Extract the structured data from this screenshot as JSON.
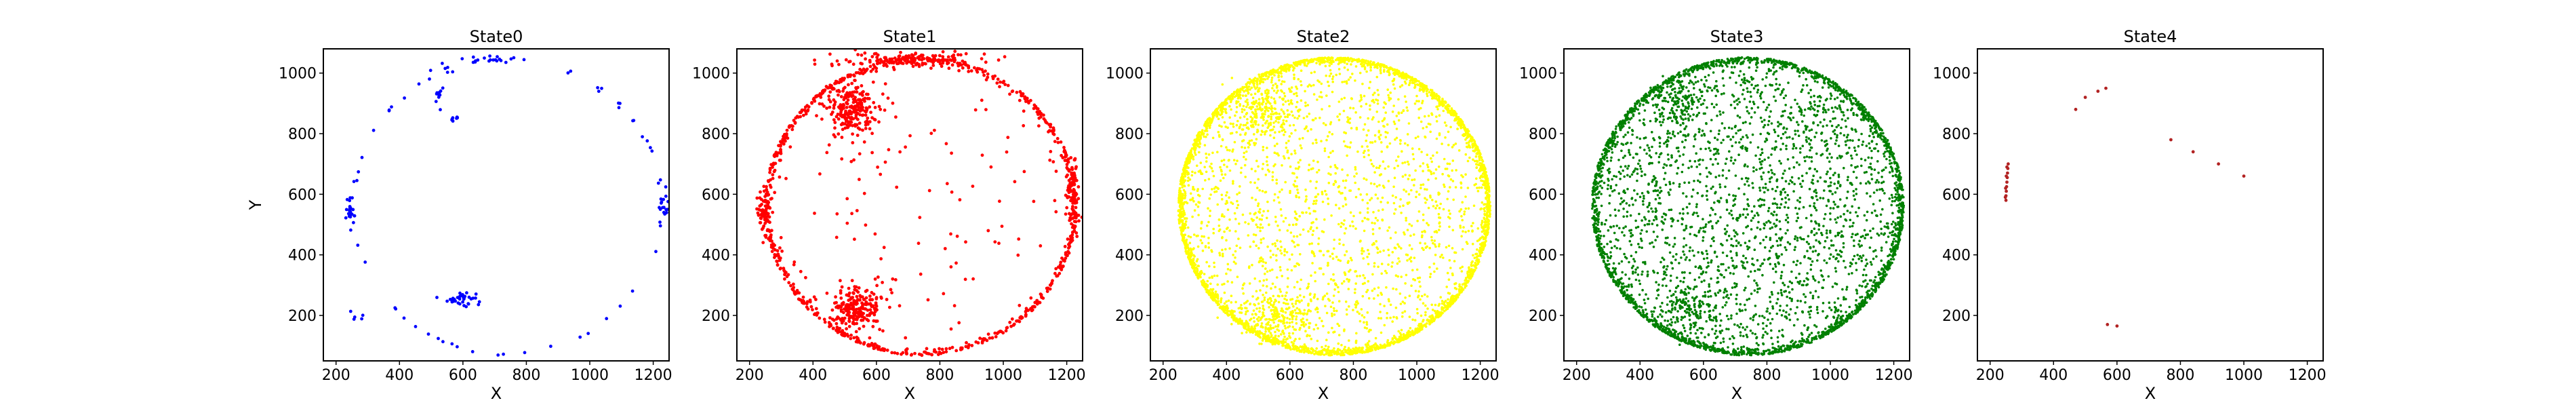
{
  "chart_data": [
    {
      "type": "scatter",
      "title": "State0",
      "xlabel": "X",
      "ylabel": "Y",
      "xlim": [
        160,
        1250
      ],
      "ylim": [
        50,
        1080
      ],
      "xticks": [
        200,
        400,
        600,
        800,
        1000,
        1200
      ],
      "yticks": [
        200,
        400,
        600,
        800,
        1000
      ],
      "color": "#0000ff",
      "density": "sparse",
      "clusters": [
        {
          "x": 245,
          "y": 545,
          "sx": 8,
          "sy": 30,
          "n": 25
        },
        {
          "x": 595,
          "y": 255,
          "sx": 22,
          "sy": 12,
          "n": 35
        },
        {
          "x": 1235,
          "y": 570,
          "sx": 10,
          "sy": 25,
          "n": 15
        },
        {
          "x": 525,
          "y": 925,
          "sx": 8,
          "sy": 15,
          "n": 10
        },
        {
          "x": 570,
          "y": 845,
          "sx": 12,
          "sy": 10,
          "n": 8
        },
        {
          "x": 680,
          "y": 1045,
          "sx": 40,
          "sy": 5,
          "n": 15
        },
        {
          "x": 540,
          "y": 1010,
          "sx": 25,
          "sy": 12,
          "n": 6
        },
        {
          "x": 260,
          "y": 200,
          "sx": 15,
          "sy": 10,
          "n": 5
        }
      ],
      "arc_points": 60,
      "interior_points": 0
    },
    {
      "type": "scatter",
      "title": "State1",
      "xlabel": "X",
      "ylabel": "",
      "xlim": [
        160,
        1250
      ],
      "ylim": [
        50,
        1080
      ],
      "xticks": [
        200,
        400,
        600,
        800,
        1000,
        1200
      ],
      "yticks": [
        200,
        400,
        600,
        800,
        1000
      ],
      "color": "#ff0000",
      "density": "medium",
      "clusters": [
        {
          "x": 520,
          "y": 880,
          "sx": 40,
          "sy": 40,
          "n": 220
        },
        {
          "x": 540,
          "y": 220,
          "sx": 40,
          "sy": 35,
          "n": 220
        },
        {
          "x": 1220,
          "y": 600,
          "sx": 12,
          "sy": 60,
          "n": 80
        },
        {
          "x": 245,
          "y": 540,
          "sx": 10,
          "sy": 45,
          "n": 60
        },
        {
          "x": 700,
          "y": 1045,
          "sx": 110,
          "sy": 12,
          "n": 150
        }
      ],
      "arc_points": 700,
      "interior_points": 120
    },
    {
      "type": "scatter",
      "title": "State2",
      "xlabel": "X",
      "ylabel": "",
      "xlim": [
        160,
        1250
      ],
      "ylim": [
        50,
        1080
      ],
      "xticks": [
        200,
        400,
        600,
        800,
        1000,
        1200
      ],
      "yticks": [
        200,
        400,
        600,
        800,
        1000
      ],
      "color": "#ffff00",
      "density": "dense",
      "clusters": [
        {
          "x": 520,
          "y": 880,
          "sx": 60,
          "sy": 50,
          "n": 250
        },
        {
          "x": 560,
          "y": 200,
          "sx": 60,
          "sy": 45,
          "n": 250
        }
      ],
      "arc_points": 2600,
      "interior_points": 1600
    },
    {
      "type": "scatter",
      "title": "State3",
      "xlabel": "X",
      "ylabel": "",
      "xlim": [
        160,
        1250
      ],
      "ylim": [
        50,
        1080
      ],
      "xticks": [
        200,
        400,
        600,
        800,
        1000,
        1200
      ],
      "yticks": [
        200,
        400,
        600,
        800,
        1000
      ],
      "color": "#008000",
      "density": "dense",
      "clusters": [
        {
          "x": 520,
          "y": 900,
          "sx": 45,
          "sy": 40,
          "n": 120
        },
        {
          "x": 540,
          "y": 220,
          "sx": 45,
          "sy": 35,
          "n": 120
        }
      ],
      "arc_points": 2000,
      "interior_points": 2200
    },
    {
      "type": "scatter",
      "title": "State4",
      "xlabel": "X",
      "ylabel": "",
      "xlim": [
        160,
        1250
      ],
      "ylim": [
        50,
        1080
      ],
      "xticks": [
        200,
        400,
        600,
        800,
        1000,
        1200
      ],
      "yticks": [
        200,
        400,
        600,
        800,
        1000
      ],
      "color": "#b22222",
      "density": "very sparse",
      "points": [
        [
          250,
          580
        ],
        [
          250,
          595
        ],
        [
          251,
          610
        ],
        [
          252,
          625
        ],
        [
          253,
          640
        ],
        [
          254,
          655
        ],
        [
          255,
          670
        ],
        [
          256,
          685
        ],
        [
          257,
          700
        ],
        [
          248,
          590
        ],
        [
          249,
          620
        ],
        [
          251,
          660
        ],
        [
          253,
          690
        ],
        [
          470,
          880
        ],
        [
          500,
          920
        ],
        [
          540,
          940
        ],
        [
          565,
          950
        ],
        [
          770,
          780
        ],
        [
          840,
          740
        ],
        [
          920,
          700
        ],
        [
          1000,
          660
        ],
        [
          570,
          170
        ],
        [
          600,
          165
        ]
      ],
      "clusters": [],
      "arc_points": 0,
      "interior_points": 0
    }
  ]
}
